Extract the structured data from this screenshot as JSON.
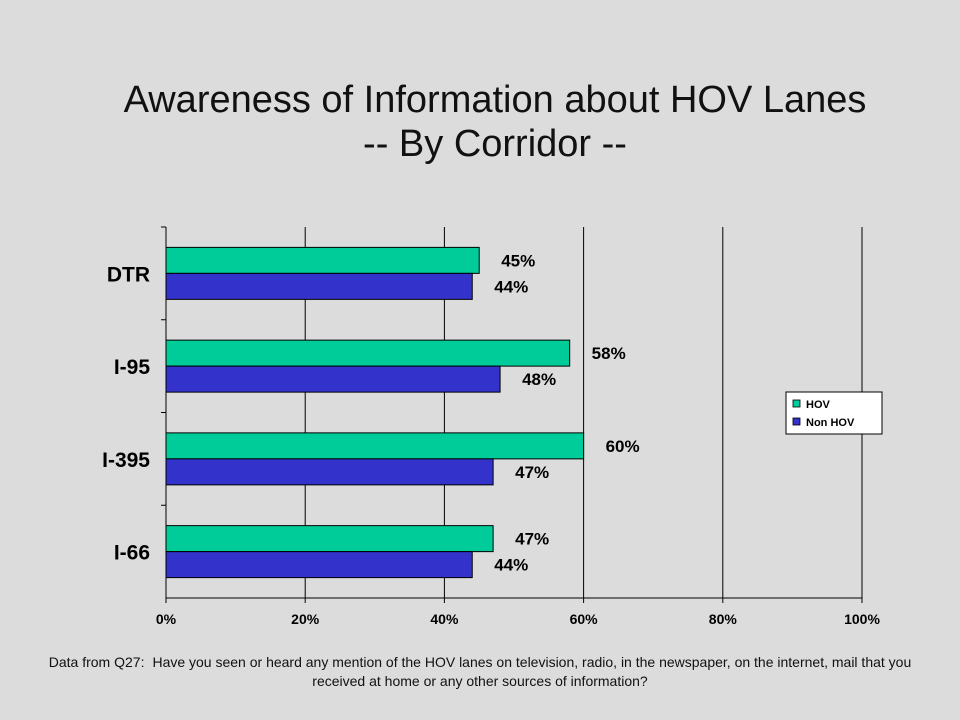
{
  "title": {
    "line1": "Awareness of Information about HOV Lanes",
    "line2": "-- By Corridor --"
  },
  "footnote": {
    "label": "Data from Q27:",
    "text": "Have you seen or heard any mention of the HOV lanes on television, radio, in the newspaper, on the internet, mail that you received at home or any other sources of information?"
  },
  "colors": {
    "hov": "#00cc99",
    "non_hov": "#3333cc",
    "grid": "#000000",
    "background": "#dcdcdc"
  },
  "chart_data": {
    "type": "bar",
    "orientation": "horizontal",
    "categories": [
      "DTR",
      "I-95",
      "I-395",
      "I-66"
    ],
    "series": [
      {
        "name": "HOV",
        "values": [
          45,
          58,
          60,
          47
        ],
        "labels": [
          "45%",
          "58%",
          "60%",
          "47%"
        ]
      },
      {
        "name": "Non HOV",
        "values": [
          44,
          48,
          47,
          44
        ],
        "labels": [
          "44%",
          "48%",
          "47%",
          "44%"
        ]
      }
    ],
    "xlim": [
      0,
      100
    ],
    "xticks": [
      0,
      20,
      40,
      60,
      80,
      100
    ],
    "xtick_labels": [
      "0%",
      "20%",
      "40%",
      "60%",
      "80%",
      "100%"
    ],
    "grid": "vertical",
    "legend_position": "right"
  }
}
